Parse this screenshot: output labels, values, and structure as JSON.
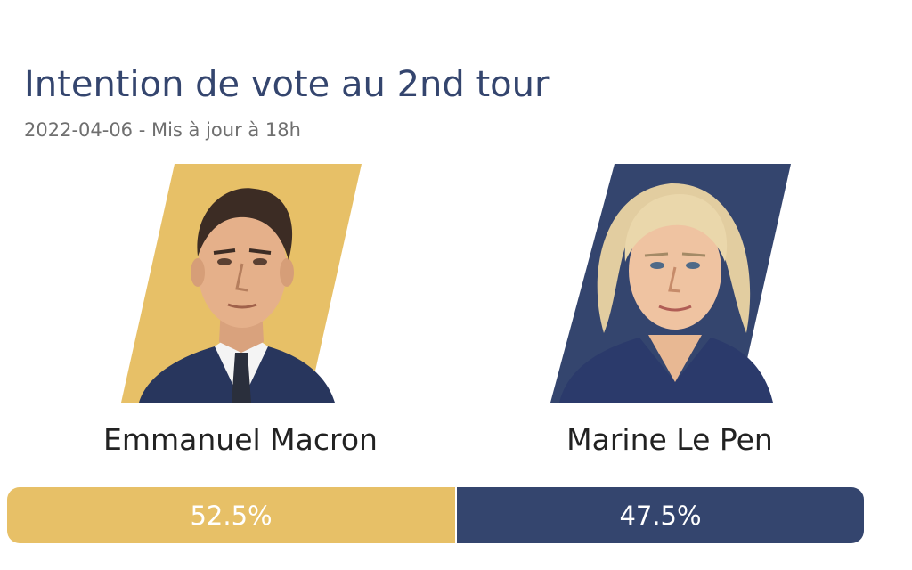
{
  "title": "Intention de vote au 2nd tour",
  "subtitle": "2022-04-06 - Mis à jour à 18h",
  "colors": {
    "title": "#34456e",
    "subtitle": "#6f6f6f",
    "macron": "#e7c067",
    "lepen": "#34456e"
  },
  "chart_data": {
    "type": "bar",
    "orientation": "horizontal-stacked",
    "categories": [
      "Emmanuel Macron",
      "Marine Le Pen"
    ],
    "values": [
      52.5,
      47.5
    ],
    "value_labels": [
      "52.5%",
      "47.5%"
    ],
    "unit": "%",
    "title": "Intention de vote au 2nd tour",
    "subtitle": "2022-04-06 - Mis à jour à 18h",
    "colors": [
      "#e7c067",
      "#34456e"
    ]
  },
  "candidates": [
    {
      "name": "Emmanuel Macron",
      "icon": "portrait-macron-icon"
    },
    {
      "name": "Marine Le Pen",
      "icon": "portrait-lepen-icon"
    }
  ]
}
